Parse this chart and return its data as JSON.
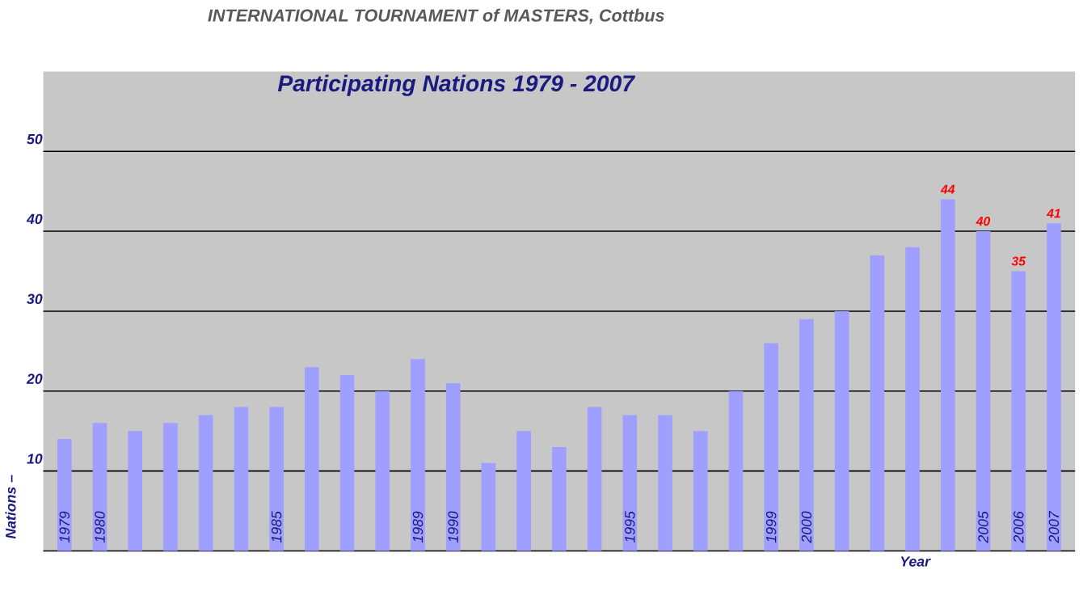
{
  "chart_data": {
    "type": "bar",
    "title": "INTERNATIONAL TOURNAMENT of MASTERS, Cottbus",
    "subtitle": "Participating Nations 1979 - 2007",
    "xlabel": "Year",
    "ylabel": "Nations –",
    "categories": [
      "1979",
      "1980",
      null,
      null,
      null,
      null,
      "1985",
      null,
      null,
      null,
      "1989",
      "1990",
      null,
      null,
      null,
      null,
      "1995",
      null,
      null,
      null,
      "1999",
      "2000",
      null,
      null,
      null,
      null,
      "2005",
      "2006",
      "2007"
    ],
    "values": [
      14,
      16,
      15,
      16,
      17,
      18,
      18,
      23,
      22,
      20,
      24,
      21,
      11,
      15,
      13,
      18,
      17,
      17,
      15,
      20,
      26,
      29,
      30,
      37,
      38,
      44,
      40,
      35,
      41
    ],
    "value_labels": [
      null,
      null,
      null,
      null,
      null,
      null,
      null,
      null,
      null,
      null,
      null,
      null,
      null,
      null,
      null,
      null,
      null,
      null,
      null,
      null,
      null,
      null,
      null,
      null,
      null,
      "44",
      "40",
      "35",
      "41"
    ],
    "color": "#9f9fff",
    "ylim": [
      0,
      60
    ],
    "yticks": [
      10,
      20,
      30,
      40,
      50
    ],
    "grid": "y"
  }
}
